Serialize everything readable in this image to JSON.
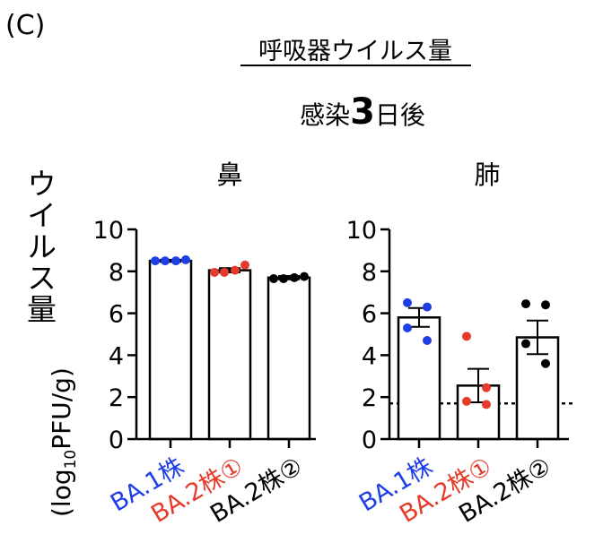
{
  "panel_label": "(C)",
  "title": "呼吸器ウイルス量",
  "subtitle": {
    "prefix": "感染",
    "day": "3",
    "suffix": "日後"
  },
  "ylabel": {
    "main": "ウイルス量",
    "unit_open": "(log",
    "unit_sub": "10",
    "unit_rest": "PFU/g)"
  },
  "colors": {
    "blue": "#1f3fe6",
    "red": "#e63a2a",
    "black": "#000000"
  },
  "chart_data": [
    {
      "type": "bar",
      "title": "鼻",
      "categories": [
        "BA.1株",
        "BA.2株①",
        "BA.2株②"
      ],
      "category_colors": [
        "blue",
        "red",
        "black"
      ],
      "ylim": [
        0,
        10
      ],
      "yticks": [
        "0",
        "2",
        "4",
        "6",
        "8",
        "10"
      ],
      "values": [
        8.5,
        8.05,
        7.7
      ],
      "sem": [
        0.05,
        0.1,
        0.08
      ],
      "points": [
        [
          8.5,
          8.5,
          8.5,
          8.55
        ],
        [
          7.95,
          7.95,
          8.05,
          8.3
        ],
        [
          7.65,
          7.65,
          7.7,
          7.75
        ]
      ]
    },
    {
      "type": "bar",
      "title": "肺",
      "categories": [
        "BA.1株",
        "BA.2株①",
        "BA.2株②"
      ],
      "category_colors": [
        "blue",
        "red",
        "black"
      ],
      "ylim": [
        0,
        10
      ],
      "yticks": [
        "0",
        "2",
        "4",
        "6",
        "8",
        "10"
      ],
      "values": [
        5.8,
        2.55,
        4.85
      ],
      "sem": [
        0.45,
        0.8,
        0.8
      ],
      "points": [
        [
          6.5,
          6.3,
          5.3,
          4.7
        ],
        [
          4.9,
          2.45,
          1.8,
          1.65
        ],
        [
          6.45,
          6.4,
          4.55,
          3.6
        ]
      ],
      "threshold": 1.7
    }
  ]
}
